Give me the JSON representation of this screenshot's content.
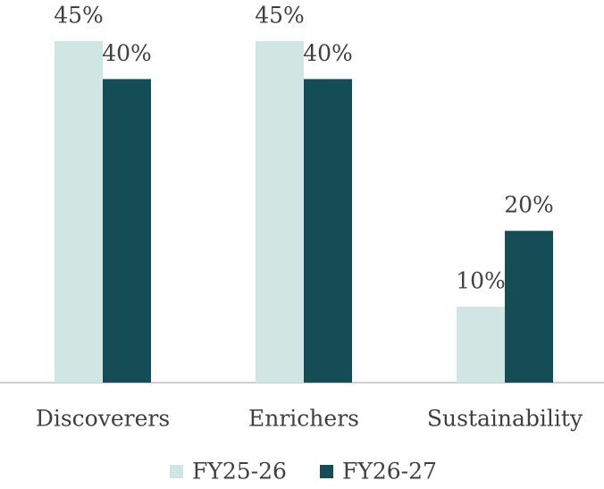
{
  "chart_data": {
    "type": "bar",
    "categories": [
      "Discoverers",
      "Enrichers",
      "Sustainability"
    ],
    "series": [
      {
        "name": "FY25-26",
        "color": "#cfe6e3",
        "values": [
          45,
          45,
          10
        ],
        "value_labels": [
          "45%",
          "45%",
          "10%"
        ]
      },
      {
        "name": "FY26-27",
        "color": "#154d57",
        "values": [
          40,
          40,
          20
        ],
        "value_labels": [
          "40%",
          "40%",
          "20%"
        ]
      }
    ],
    "legend": "bottom"
  }
}
